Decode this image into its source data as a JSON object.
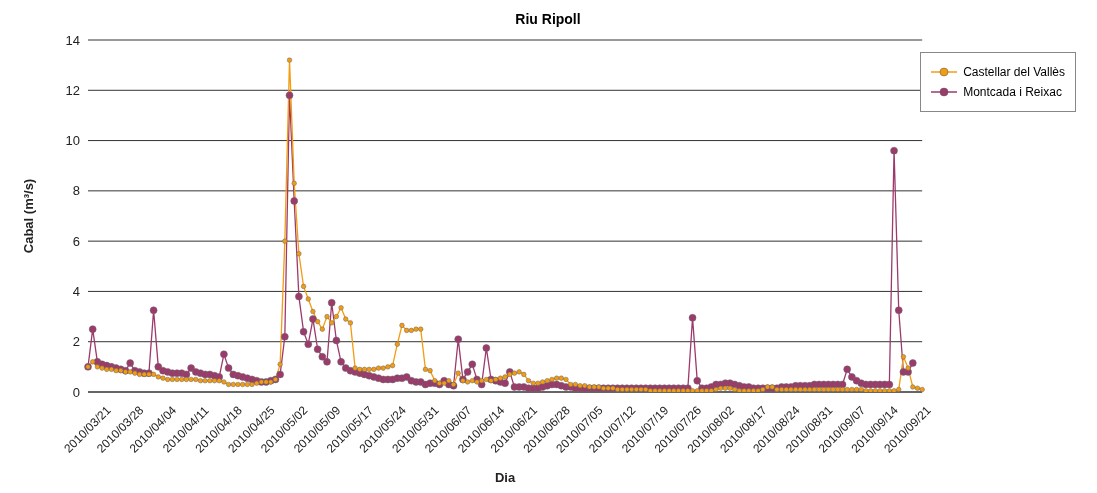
{
  "chart_data": {
    "type": "line",
    "title": "Riu Ripoll",
    "xlabel": "Dia",
    "ylabel": "Cabal (m³/s)",
    "categories": [
      "2010/03/21",
      null,
      null,
      null,
      null,
      null,
      null,
      "2010/03/28",
      null,
      null,
      null,
      null,
      null,
      null,
      "2010/04/04",
      null,
      null,
      null,
      null,
      null,
      null,
      "2010/04/11",
      null,
      null,
      null,
      null,
      null,
      null,
      "2010/04/18",
      null,
      null,
      null,
      null,
      null,
      null,
      "2010/04/25",
      null,
      null,
      null,
      null,
      null,
      null,
      "2010/05/02",
      null,
      null,
      null,
      null,
      null,
      null,
      "2010/05/09",
      null,
      null,
      null,
      null,
      null,
      null,
      "2010/05/17",
      null,
      null,
      null,
      null,
      null,
      null,
      "2010/05/24",
      null,
      null,
      null,
      null,
      null,
      null,
      "2010/05/31",
      null,
      null,
      null,
      null,
      null,
      null,
      "2010/06/07",
      null,
      null,
      null,
      null,
      null,
      null,
      "2010/06/14",
      null,
      null,
      null,
      null,
      null,
      null,
      "2010/06/21",
      null,
      null,
      null,
      null,
      null,
      null,
      "2010/06/28",
      null,
      null,
      null,
      null,
      null,
      null,
      "2010/07/05",
      null,
      null,
      null,
      null,
      null,
      null,
      "2010/07/12",
      null,
      null,
      null,
      null,
      null,
      null,
      "2010/07/19",
      null,
      null,
      null,
      null,
      null,
      null,
      "2010/07/26",
      null,
      null,
      null,
      null,
      null,
      null,
      "2010/08/02",
      null,
      null,
      null,
      null,
      null,
      null,
      "2010/08/17",
      null,
      null,
      null,
      null,
      null,
      null,
      "2010/08/24",
      null,
      null,
      null,
      null,
      null,
      null,
      "2010/08/31",
      null,
      null,
      null,
      null,
      null,
      null,
      "2010/09/07",
      null,
      null,
      null,
      null,
      null,
      null,
      "2010/09/14",
      null,
      null,
      null,
      null,
      null,
      null,
      "2010/09/21",
      null,
      null,
      null
    ],
    "series": [
      {
        "name": "Castellar del Vallès",
        "color": "#f39c12",
        "values": [
          1.0,
          1.2,
          1.0,
          0.95,
          0.9,
          0.9,
          0.85,
          0.85,
          0.8,
          0.8,
          0.75,
          0.7,
          0.7,
          0.7,
          0.7,
          0.6,
          0.55,
          0.5,
          0.5,
          0.5,
          0.5,
          0.5,
          0.5,
          0.5,
          0.45,
          0.45,
          0.45,
          0.45,
          0.45,
          0.4,
          0.3,
          0.3,
          0.3,
          0.3,
          0.3,
          0.3,
          0.35,
          0.4,
          0.4,
          0.4,
          0.5,
          1.1,
          6.0,
          13.2,
          8.3,
          5.5,
          4.2,
          3.7,
          3.2,
          2.8,
          2.5,
          3.0,
          2.75,
          3.0,
          3.35,
          2.9,
          2.75,
          0.95,
          0.9,
          0.9,
          0.9,
          0.9,
          0.95,
          0.95,
          1.0,
          1.05,
          1.9,
          2.65,
          2.45,
          2.45,
          2.5,
          2.5,
          0.9,
          0.85,
          0.45,
          0.35,
          0.35,
          0.45,
          0.3,
          0.75,
          0.45,
          0.4,
          0.45,
          0.4,
          0.45,
          0.5,
          0.45,
          0.5,
          0.55,
          0.6,
          0.7,
          0.75,
          0.8,
          0.7,
          0.45,
          0.35,
          0.35,
          0.4,
          0.45,
          0.5,
          0.55,
          0.55,
          0.5,
          0.3,
          0.3,
          0.25,
          0.25,
          0.2,
          0.2,
          0.2,
          0.15,
          0.15,
          0.15,
          0.1,
          0.1,
          0.1,
          0.1,
          0.1,
          0.1,
          0.1,
          0.05,
          0.05,
          0.05,
          0.05,
          0.05,
          0.05,
          0.05,
          0.05,
          0.05,
          0.05,
          0.05,
          0.05,
          0.05,
          0.05,
          0.1,
          0.15,
          0.15,
          0.15,
          0.1,
          0.05,
          0.05,
          0.05,
          0.05,
          0.05,
          0.1,
          0.2,
          0.2,
          0.1,
          0.1,
          0.1,
          0.1,
          0.1,
          0.1,
          0.1,
          0.1,
          0.1,
          0.1,
          0.1,
          0.1,
          0.1,
          0.1,
          0.1,
          0.1,
          0.1,
          0.1,
          0.1,
          0.05,
          0.05,
          0.05,
          0.05,
          0.05,
          0.05,
          0.05,
          0.1,
          1.4,
          0.95,
          0.2,
          0.15,
          0.1
        ]
      },
      {
        "name": "Montcada i Reixac",
        "color": "#9c3a6b",
        "values": [
          1.0,
          2.5,
          1.2,
          1.1,
          1.05,
          1.0,
          0.95,
          0.9,
          0.85,
          1.15,
          0.85,
          0.8,
          0.75,
          0.75,
          3.25,
          1.0,
          0.85,
          0.8,
          0.75,
          0.75,
          0.75,
          0.7,
          0.95,
          0.8,
          0.75,
          0.7,
          0.7,
          0.65,
          0.6,
          1.5,
          0.95,
          0.7,
          0.65,
          0.6,
          0.55,
          0.5,
          0.45,
          0.4,
          0.4,
          0.45,
          0.5,
          0.7,
          2.2,
          11.8,
          7.6,
          3.8,
          2.4,
          1.9,
          2.9,
          1.7,
          1.4,
          1.2,
          3.55,
          2.05,
          1.2,
          0.95,
          0.85,
          0.8,
          0.75,
          0.7,
          0.65,
          0.6,
          0.55,
          0.5,
          0.5,
          0.5,
          0.55,
          0.55,
          0.6,
          0.45,
          0.4,
          0.4,
          0.3,
          0.35,
          0.35,
          0.3,
          0.45,
          0.3,
          0.25,
          2.1,
          0.5,
          0.8,
          1.1,
          0.5,
          0.3,
          1.75,
          0.5,
          0.45,
          0.4,
          0.35,
          0.8,
          0.2,
          0.2,
          0.2,
          0.15,
          0.15,
          0.15,
          0.2,
          0.25,
          0.3,
          0.3,
          0.25,
          0.2,
          0.2,
          0.15,
          0.15,
          0.15,
          0.15,
          0.15,
          0.15,
          0.15,
          0.15,
          0.15,
          0.15,
          0.15,
          0.15,
          0.15,
          0.15,
          0.15,
          0.15,
          0.15,
          0.15,
          0.15,
          0.15,
          0.15,
          0.15,
          0.15,
          0.15,
          0.15,
          2.95,
          0.45,
          0.15,
          0.15,
          0.2,
          0.3,
          0.3,
          0.35,
          0.35,
          0.3,
          0.25,
          0.2,
          0.2,
          0.15,
          0.15,
          0.15,
          0.15,
          0.15,
          0.15,
          0.2,
          0.2,
          0.2,
          0.25,
          0.25,
          0.25,
          0.25,
          0.3,
          0.3,
          0.3,
          0.3,
          0.3,
          0.3,
          0.3,
          0.9,
          0.6,
          0.45,
          0.35,
          0.3,
          0.3,
          0.3,
          0.3,
          0.3,
          0.3,
          9.6,
          3.25,
          0.8,
          0.8,
          1.15,
          null,
          null
        ]
      }
    ],
    "ylim": [
      0,
      14
    ],
    "yticks": [
      0,
      2,
      4,
      6,
      8,
      10,
      12,
      14
    ],
    "grid": "y",
    "legend": "top right",
    "marker": "circle",
    "line_style": "solid"
  }
}
